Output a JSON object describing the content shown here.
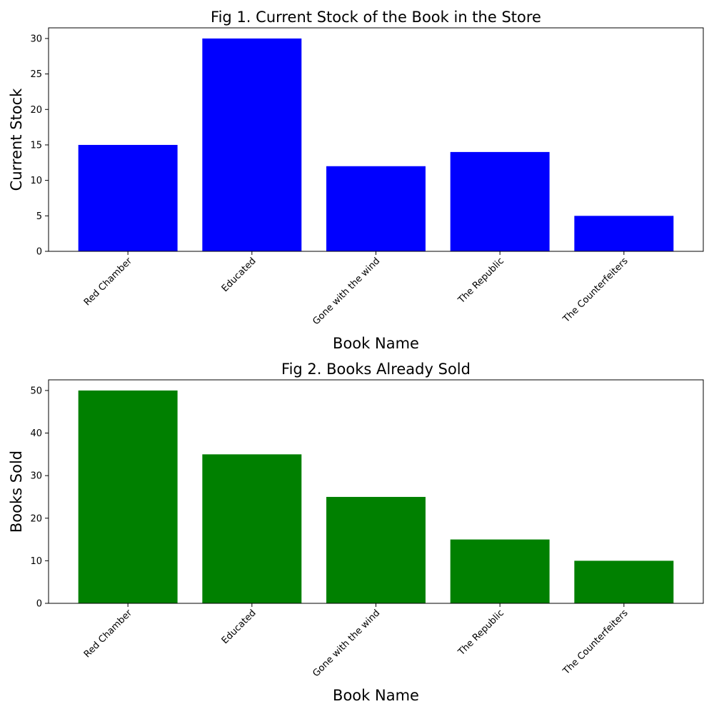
{
  "chart_data": [
    {
      "type": "bar",
      "title": "Fig 1. Current Stock of the Book in the Store",
      "xlabel": "Book Name",
      "ylabel": "Current Stock",
      "categories": [
        "Red Chamber",
        "Educated",
        "Gone with the wind",
        "The Republic",
        "The Counterfeiters"
      ],
      "values": [
        15,
        30,
        12,
        14,
        5
      ],
      "ylim": [
        0,
        31.5
      ],
      "yticks": [
        0,
        5,
        10,
        15,
        20,
        25,
        30
      ],
      "color": "#0000ff",
      "grid": false,
      "legend": "none"
    },
    {
      "type": "bar",
      "title": "Fig 2. Books Already Sold",
      "xlabel": "Book Name",
      "ylabel": "Books Sold",
      "categories": [
        "Red Chamber",
        "Educated",
        "Gone with the wind",
        "The Republic",
        "The Counterfeiters"
      ],
      "values": [
        50,
        35,
        25,
        15,
        10
      ],
      "ylim": [
        0,
        52.5
      ],
      "yticks": [
        0,
        10,
        20,
        30,
        40,
        50
      ],
      "color": "#008000",
      "grid": false,
      "legend": "none"
    }
  ]
}
